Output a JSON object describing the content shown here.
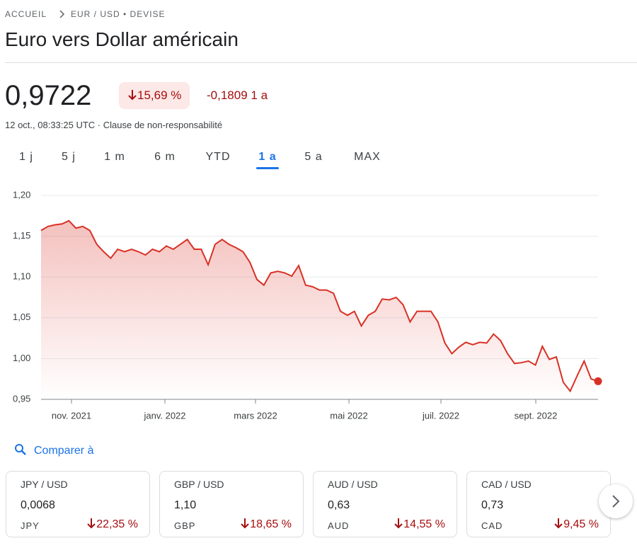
{
  "breadcrumb": [
    "ACCUEIL",
    "EUR / USD • DEVISE"
  ],
  "title": "Euro vers Dollar américain",
  "price": "0,9722",
  "change_percent": "15,69 %",
  "change_absolute": "-0,1809",
  "change_period": "1 a",
  "timestamp": "12 oct., 08:33:25 UTC",
  "disclaimer": "Clause de non-responsabilité",
  "ranges": [
    "1 j",
    "5 j",
    "1 m",
    "6 m",
    "YTD",
    "1 a",
    "5 a",
    "MAX"
  ],
  "compare": "Comparer à",
  "cards": [
    {
      "pair": "JPY / USD",
      "price": "0,0068",
      "code": "JPY",
      "change": "22,35 %"
    },
    {
      "pair": "GBP / USD",
      "price": "1,10",
      "code": "GBP",
      "change": "18,65 %"
    },
    {
      "pair": "AUD / USD",
      "price": "0,63",
      "code": "AUD",
      "change": "14,55 %"
    },
    {
      "pair": "CAD / USD",
      "price": "0,73",
      "code": "CAD",
      "change": "9,45 %"
    }
  ],
  "chart_data": {
    "type": "line",
    "x_labels": [
      "nov. 2021",
      "janv. 2022",
      "mars 2022",
      "mai 2022",
      "juil. 2022",
      "sept. 2022"
    ],
    "ylim": [
      0.95,
      1.2
    ],
    "yticks": [
      {
        "value": 0.95,
        "label": "0,95"
      },
      {
        "value": 1.0,
        "label": "1,00"
      },
      {
        "value": 1.05,
        "label": "1,05"
      },
      {
        "value": 1.1,
        "label": "1,10"
      },
      {
        "value": 1.15,
        "label": "1,15"
      },
      {
        "value": 1.2,
        "label": "1,20"
      }
    ],
    "grid": true,
    "series": [
      {
        "color": "#d93025",
        "values": [
          1.157,
          1.162,
          1.164,
          1.165,
          1.169,
          1.16,
          1.162,
          1.157,
          1.14,
          1.131,
          1.123,
          1.134,
          1.131,
          1.134,
          1.131,
          1.127,
          1.134,
          1.131,
          1.138,
          1.134,
          1.14,
          1.146,
          1.134,
          1.134,
          1.115,
          1.14,
          1.146,
          1.14,
          1.136,
          1.131,
          1.118,
          1.097,
          1.09,
          1.105,
          1.107,
          1.105,
          1.101,
          1.114,
          1.09,
          1.088,
          1.084,
          1.084,
          1.08,
          1.058,
          1.053,
          1.058,
          1.04,
          1.053,
          1.058,
          1.073,
          1.072,
          1.075,
          1.066,
          1.045,
          1.058,
          1.058,
          1.058,
          1.045,
          1.019,
          1.006,
          1.014,
          1.02,
          1.017,
          1.02,
          1.019,
          1.03,
          1.022,
          1.006,
          0.994,
          0.995,
          0.997,
          0.992,
          1.015,
          0.999,
          1.002,
          0.971,
          0.96,
          0.979,
          0.997,
          0.975,
          0.9722
        ]
      }
    ]
  }
}
